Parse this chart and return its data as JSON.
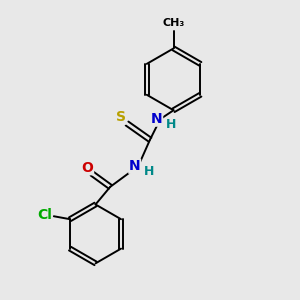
{
  "background_color": "#e8e8e8",
  "bond_color": "#000000",
  "atom_colors": {
    "S": "#b8a000",
    "N": "#0000cc",
    "O": "#cc0000",
    "Cl": "#00aa00",
    "H": "#008888",
    "C": "#000000"
  },
  "font_size_atom": 10,
  "font_size_h": 9,
  "lw": 1.4
}
